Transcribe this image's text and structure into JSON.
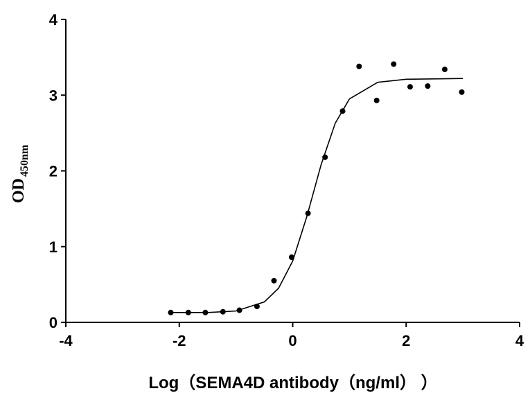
{
  "chart_data": {
    "type": "scatter",
    "x_label": "Log（SEMA4D antibody（ng/ml）  ）",
    "y_label": "OD",
    "y_label_subscript": "450nm",
    "xlim": [
      -4,
      4
    ],
    "xticks": [
      -4,
      -2,
      0,
      2,
      4
    ],
    "ylim": [
      0,
      4
    ],
    "yticks": [
      0,
      1,
      2,
      3,
      4
    ],
    "series": [
      {
        "type": "scatter",
        "color": "#000000",
        "x": [
          -2.15,
          -1.84,
          -1.54,
          -1.23,
          -0.94,
          -0.63,
          -0.33,
          -0.02,
          0.27,
          0.57,
          0.88,
          1.17,
          1.48,
          1.78,
          2.07,
          2.38,
          2.68,
          2.98
        ],
        "values": [
          0.13,
          0.13,
          0.13,
          0.14,
          0.16,
          0.21,
          0.55,
          0.86,
          1.44,
          2.18,
          2.79,
          3.38,
          2.93,
          3.41,
          3.11,
          3.12,
          3.34,
          3.04
        ]
      },
      {
        "type": "line",
        "color": "#000000",
        "x": [
          -2.15,
          -1.5,
          -1,
          -0.5,
          -0.25,
          0,
          0.25,
          0.5,
          0.75,
          1,
          1.5,
          2,
          3
        ],
        "values": [
          0.13,
          0.13,
          0.15,
          0.27,
          0.45,
          0.81,
          1.4,
          2.08,
          2.63,
          2.95,
          3.17,
          3.21,
          3.22
        ]
      }
    ]
  }
}
